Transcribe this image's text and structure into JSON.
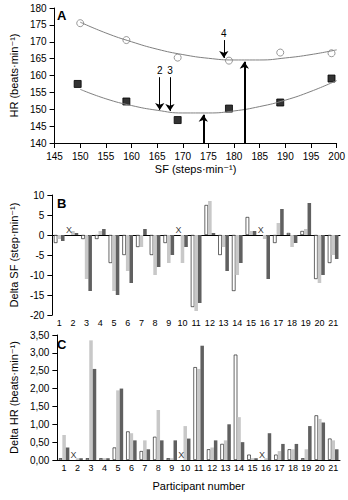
{
  "chart_data": [
    {
      "type": "scatter",
      "title": "A",
      "x_label": "SF (steps·min⁻¹)",
      "y_label": "HR (beats·min⁻¹)",
      "xlim": [
        145,
        200
      ],
      "xticks": [
        145,
        150,
        155,
        160,
        165,
        170,
        175,
        180,
        185,
        190,
        195,
        200
      ],
      "ylim": [
        140,
        180
      ],
      "yticks": [
        140,
        145,
        150,
        155,
        160,
        165,
        170,
        175,
        180
      ],
      "grid": false,
      "series": [
        {
          "type": "scatter",
          "marker": "open_circle",
          "color": "#808080",
          "x": [
            150,
            159,
            169,
            179,
            189,
            199
          ],
          "values": [
            175.5,
            170.5,
            165.3,
            164.4,
            166.8,
            166.6
          ]
        },
        {
          "type": "scatter",
          "marker": "square",
          "color": "#000000",
          "x": [
            149.5,
            159,
            169,
            179,
            189,
            199
          ],
          "values": [
            157.5,
            152.3,
            146.8,
            150.2,
            152.0,
            159.1
          ]
        },
        {
          "type": "line",
          "line_style": "solid",
          "color": "#808080",
          "x": [
            150,
            155,
            160,
            165,
            170,
            175,
            180,
            185,
            190,
            195,
            200
          ],
          "values": [
            175.8,
            172.6,
            170.0,
            167.8,
            166.2,
            165.1,
            164.6,
            164.6,
            165.2,
            166.2,
            167.6
          ]
        },
        {
          "type": "line",
          "line_style": "solid",
          "color": "#808080",
          "x": [
            150,
            155,
            160,
            165,
            170,
            175,
            180,
            185,
            190,
            195,
            200
          ],
          "values": [
            155.9,
            153.1,
            151.1,
            149.7,
            148.9,
            148.9,
            149.5,
            150.8,
            152.7,
            155.3,
            158.5
          ]
        }
      ],
      "annotations": [
        {
          "text": "2",
          "x": 165.5,
          "from": 159.5,
          "to": 149.8
        },
        {
          "text": "3",
          "x": 167.5,
          "from": 159.5,
          "to": 149.5
        },
        {
          "text": "4",
          "x": 178,
          "from": 170.5,
          "to": 165.2
        },
        {
          "x": 174,
          "from": 140,
          "to": 148.4
        },
        {
          "x": 182,
          "from": 140,
          "to": 164.1
        }
      ]
    },
    {
      "type": "bar",
      "title": "B",
      "y_label": "Delta SF (step·min⁻¹)",
      "categories": [
        "1",
        "2",
        "3",
        "4",
        "5",
        "6",
        "7",
        "8",
        "9",
        "10",
        "11",
        "12",
        "13",
        "14",
        "15",
        "16",
        "17",
        "18",
        "19",
        "20",
        "21"
      ],
      "ylim": [
        -20,
        10
      ],
      "yticks": [
        -20,
        -15,
        -10,
        -5,
        0,
        5,
        10
      ],
      "grid": false,
      "series": [
        {
          "color": "#ffffff",
          "values": [
            -2,
            null,
            -1,
            -1,
            -7,
            -5,
            -3,
            -5,
            -2,
            null,
            -18,
            7.5,
            -5,
            -14,
            4.5,
            null,
            -2,
            0.5,
            1,
            -11,
            -7
          ]
        },
        {
          "color": "#c8c8c8",
          "values": [
            -1,
            1,
            -11,
            1,
            -14,
            -9,
            -3,
            -10,
            -7,
            -7,
            -19,
            8.5,
            -3,
            -10,
            1,
            -1,
            3,
            -3,
            1.5,
            -12,
            -5
          ]
        },
        {
          "color": "#606060",
          "values": [
            -1.5,
            0.5,
            -14,
            1.5,
            -15,
            -12,
            1.5,
            -8,
            -5,
            -3,
            -17,
            0.5,
            -9,
            -7,
            1,
            -11,
            6.5,
            -2,
            8,
            -10,
            -6
          ]
        }
      ],
      "annotations": [
        {
          "text": "X",
          "category": "2",
          "y": 0
        },
        {
          "text": "X",
          "category": "10",
          "y": 0
        },
        {
          "text": "X",
          "category": "16",
          "y": 0
        }
      ]
    },
    {
      "type": "bar",
      "title": "C",
      "x_label": "Participant number",
      "y_label": "Delta HR (beats·min⁻¹)",
      "categories": [
        "1",
        "2",
        "3",
        "4",
        "5",
        "6",
        "7",
        "8",
        "9",
        "10",
        "11",
        "12",
        "13",
        "14",
        "15",
        "16",
        "17",
        "18",
        "19",
        "20",
        "21"
      ],
      "ylim": [
        0,
        3.5
      ],
      "yticks": [
        {
          "value": 0,
          "label": "0,00"
        },
        {
          "value": 0.5,
          "label": "0,50"
        },
        {
          "value": 1,
          "label": "1,00"
        },
        {
          "value": 1.5,
          "label": "1,50"
        },
        {
          "value": 2,
          "label": "2,00"
        },
        {
          "value": 2.5,
          "label": "2,50"
        },
        {
          "value": 3,
          "label": "3,00"
        },
        {
          "value": 3.5,
          "label": "3,50"
        }
      ],
      "grid": false,
      "series": [
        {
          "color": "#ffffff",
          "values": [
            0.05,
            null,
            0.05,
            0.05,
            0.35,
            0.8,
            0.25,
            0.65,
            0.05,
            null,
            2.6,
            0.3,
            0.45,
            2.95,
            0.15,
            null,
            0.15,
            0.3,
            0.05,
            1.25,
            0.6
          ]
        },
        {
          "color": "#c8c8c8",
          "values": [
            0.7,
            0.05,
            3.35,
            0.05,
            1.95,
            0.75,
            0.55,
            1.4,
            0.05,
            0.95,
            2.55,
            0.35,
            0.55,
            1.2,
            0.05,
            0.05,
            0.25,
            0.3,
            0.3,
            1.15,
            0.55
          ]
        },
        {
          "color": "#606060",
          "values": [
            0.35,
            0.05,
            2.55,
            0.05,
            2.0,
            0.55,
            0.3,
            0.55,
            0.55,
            0.6,
            3.2,
            0.55,
            1.0,
            0.5,
            0.05,
            0.75,
            0.45,
            0.45,
            0.95,
            1.05,
            0.3
          ]
        }
      ],
      "annotations": [
        {
          "text": "X",
          "category": "2",
          "y": 0
        },
        {
          "text": "X",
          "category": "10",
          "y": 0
        },
        {
          "text": "X",
          "category": "16",
          "y": 0
        }
      ]
    }
  ]
}
